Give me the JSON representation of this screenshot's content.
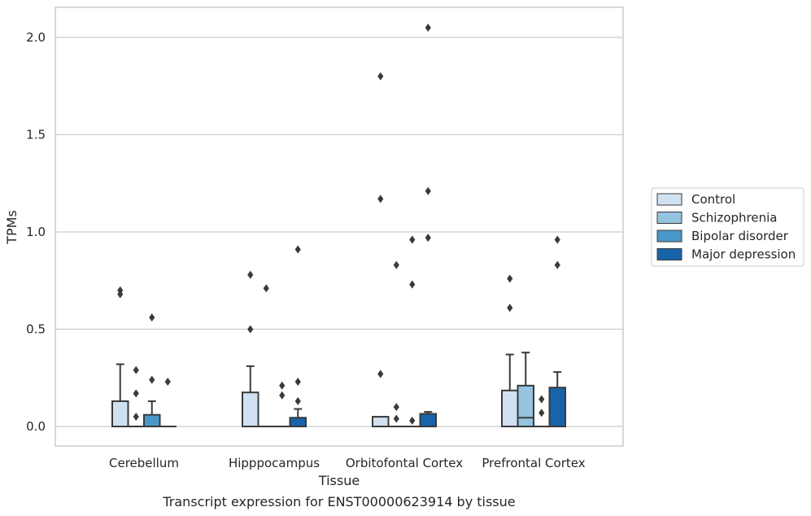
{
  "chart_data": {
    "type": "box",
    "xlabel": "Tissue",
    "ylabel": "TPMs",
    "caption": "Transcript expression for ENST00000623914 by tissue",
    "ylim": [
      -0.1,
      2.16
    ],
    "yticks": [
      0.0,
      0.5,
      1.0,
      1.5,
      2.0
    ],
    "ytick_labels": [
      "0.0",
      "0.5",
      "1.0",
      "1.5",
      "2.0"
    ],
    "grid": "horizontal",
    "legend_position": "right",
    "categories": [
      "Cerebellum",
      "Hipppocampus",
      "Orbitofontal Cortex",
      "Prefrontal Cortex"
    ],
    "series": [
      {
        "name": "Control",
        "color": "#d0e1f2"
      },
      {
        "name": "Schizophrenia",
        "color": "#94c4df"
      },
      {
        "name": "Bipolar disorder",
        "color": "#4a98c9"
      },
      {
        "name": "Major depression",
        "color": "#1764ab"
      }
    ],
    "boxes": [
      [
        {
          "q1": 0.0,
          "median": 0.0,
          "q3": 0.13,
          "whisker_low": 0.0,
          "whisker_high": 0.32,
          "outliers": [
            0.68,
            0.7
          ]
        },
        {
          "q1": 0.0,
          "median": 0.0,
          "q3": 0.0,
          "whisker_low": 0.0,
          "whisker_high": 0.0,
          "outliers": [
            0.05,
            0.17,
            0.29
          ]
        },
        {
          "q1": 0.0,
          "median": 0.0,
          "q3": 0.06,
          "whisker_low": 0.0,
          "whisker_high": 0.13,
          "outliers": [
            0.24,
            0.56
          ]
        },
        {
          "q1": 0.0,
          "median": 0.0,
          "q3": 0.0,
          "whisker_low": 0.0,
          "whisker_high": 0.0,
          "outliers": [
            0.23
          ]
        }
      ],
      [
        {
          "q1": 0.0,
          "median": 0.0,
          "q3": 0.175,
          "whisker_low": 0.0,
          "whisker_high": 0.31,
          "outliers": [
            0.5,
            0.78
          ]
        },
        {
          "q1": 0.0,
          "median": 0.0,
          "q3": 0.0,
          "whisker_low": 0.0,
          "whisker_high": 0.0,
          "outliers": [
            0.71
          ]
        },
        {
          "q1": 0.0,
          "median": 0.0,
          "q3": 0.0,
          "whisker_low": 0.0,
          "whisker_high": 0.0,
          "outliers": [
            0.16,
            0.21
          ]
        },
        {
          "q1": 0.0,
          "median": 0.0,
          "q3": 0.045,
          "whisker_low": 0.0,
          "whisker_high": 0.09,
          "outliers": [
            0.13,
            0.23,
            0.91
          ]
        }
      ],
      [
        {
          "q1": 0.0,
          "median": 0.0,
          "q3": 0.05,
          "whisker_low": 0.0,
          "whisker_high": 0.05,
          "outliers": [
            0.27,
            1.17,
            1.8
          ]
        },
        {
          "q1": 0.0,
          "median": 0.0,
          "q3": 0.0,
          "whisker_low": 0.0,
          "whisker_high": 0.0,
          "outliers": [
            0.04,
            0.1,
            0.83
          ]
        },
        {
          "q1": 0.0,
          "median": 0.0,
          "q3": 0.0,
          "whisker_low": 0.0,
          "whisker_high": 0.0,
          "outliers": [
            0.03,
            0.73,
            0.96
          ]
        },
        {
          "q1": 0.0,
          "median": 0.0,
          "q3": 0.065,
          "whisker_low": 0.0,
          "whisker_high": 0.075,
          "outliers": [
            0.97,
            1.21,
            2.05
          ]
        }
      ],
      [
        {
          "q1": 0.0,
          "median": 0.0,
          "q3": 0.185,
          "whisker_low": 0.0,
          "whisker_high": 0.37,
          "outliers": [
            0.61,
            0.76
          ]
        },
        {
          "q1": 0.0,
          "median": 0.045,
          "q3": 0.21,
          "whisker_low": 0.0,
          "whisker_high": 0.38,
          "outliers": []
        },
        {
          "q1": 0.0,
          "median": 0.0,
          "q3": 0.0,
          "whisker_low": 0.0,
          "whisker_high": 0.0,
          "outliers": [
            0.07,
            0.14
          ]
        },
        {
          "q1": 0.0,
          "median": 0.0,
          "q3": 0.2,
          "whisker_low": 0.0,
          "whisker_high": 0.28,
          "outliers": [
            0.83,
            0.96
          ]
        }
      ]
    ]
  }
}
